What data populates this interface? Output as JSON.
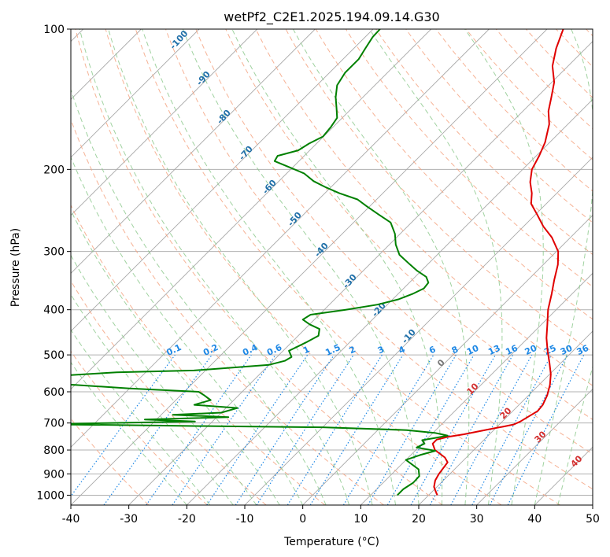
{
  "chart_data": {
    "type": "line",
    "title": "wetPf2_C2E1.2025.194.09.14.G30",
    "xlabel": "Temperature (°C)",
    "ylabel": "Pressure (hPa)",
    "xlim": [
      -40,
      50
    ],
    "ylim": [
      1050,
      100
    ],
    "y_scale": "log",
    "x_ticks": [
      -40,
      -30,
      -20,
      -10,
      0,
      10,
      20,
      30,
      40,
      50
    ],
    "y_ticks": [
      100,
      200,
      300,
      400,
      500,
      600,
      700,
      800,
      900,
      1000
    ],
    "grid": true,
    "series": [
      {
        "color": "#e00000",
        "points": [
          [
            21.5,
            1000
          ],
          [
            20.5,
            980
          ],
          [
            19.5,
            960
          ],
          [
            18.6,
            930
          ],
          [
            18.1,
            900
          ],
          [
            17.6,
            850
          ],
          [
            16.3,
            830
          ],
          [
            13.3,
            800
          ],
          [
            11.8,
            775
          ],
          [
            11.8,
            760
          ],
          [
            13.2,
            750
          ],
          [
            15.6,
            740
          ],
          [
            17.5,
            730
          ],
          [
            19.5,
            720
          ],
          [
            21.2,
            712
          ],
          [
            22.5,
            705
          ],
          [
            23.1,
            695
          ],
          [
            23.6,
            680
          ],
          [
            24.3,
            660
          ],
          [
            24.1,
            640
          ],
          [
            23.2,
            610
          ],
          [
            21.9,
            580
          ],
          [
            20.2,
            550
          ],
          [
            18.0,
            520
          ],
          [
            15.6,
            490
          ],
          [
            13.2,
            460
          ],
          [
            11.0,
            430
          ],
          [
            8.6,
            400
          ],
          [
            6.5,
            370
          ],
          [
            4.5,
            345
          ],
          [
            2.5,
            320
          ],
          [
            0.3,
            300
          ],
          [
            -3.2,
            280
          ],
          [
            -6.6,
            265
          ],
          [
            -9.7,
            250
          ],
          [
            -12.6,
            237
          ],
          [
            -14.3,
            225
          ],
          [
            -16.5,
            213
          ],
          [
            -18.4,
            200
          ],
          [
            -19.5,
            187
          ],
          [
            -20.8,
            175
          ],
          [
            -23.2,
            160
          ],
          [
            -25.6,
            150
          ],
          [
            -27.5,
            140
          ],
          [
            -29.6,
            130
          ],
          [
            -32.7,
            120
          ],
          [
            -35.1,
            110
          ],
          [
            -37.2,
            100
          ]
        ]
      },
      {
        "color": "#008000",
        "points": [
          [
            14.6,
            1000
          ],
          [
            14.6,
            970
          ],
          [
            15.2,
            940
          ],
          [
            15.1,
            910
          ],
          [
            13.8,
            880
          ],
          [
            10.0,
            840
          ],
          [
            11.6,
            820
          ],
          [
            13.5,
            803
          ],
          [
            9.7,
            790
          ],
          [
            10.4,
            775
          ],
          [
            9.4,
            762
          ],
          [
            11.6,
            752
          ],
          [
            13.0,
            745
          ],
          [
            11.7,
            740
          ],
          [
            10.3,
            735
          ],
          [
            5.0,
            725
          ],
          [
            -10.0,
            715
          ],
          [
            -35.0,
            710
          ],
          [
            -46.0,
            707
          ],
          [
            -60.0,
            705
          ],
          [
            -48.0,
            700
          ],
          [
            -33.0,
            695
          ],
          [
            -42.0,
            688
          ],
          [
            -28.0,
            680
          ],
          [
            -38.0,
            672
          ],
          [
            -30.0,
            665
          ],
          [
            -28.0,
            650
          ],
          [
            -36.0,
            640
          ],
          [
            -34.0,
            625
          ],
          [
            -36.0,
            610
          ],
          [
            -37.5,
            600
          ],
          [
            -50.0,
            590
          ],
          [
            -60.0,
            580
          ],
          [
            -75.0,
            565
          ],
          [
            -55.0,
            545
          ],
          [
            -42.0,
            540
          ],
          [
            -30.0,
            525
          ],
          [
            -28.0,
            515
          ],
          [
            -27.5,
            505
          ],
          [
            -29.0,
            490
          ],
          [
            -27.5,
            470
          ],
          [
            -26.5,
            455
          ],
          [
            -27.5,
            440
          ],
          [
            -30.0,
            430
          ],
          [
            -32.0,
            420
          ],
          [
            -31.5,
            410
          ],
          [
            -26.3,
            400
          ],
          [
            -21.7,
            390
          ],
          [
            -19.0,
            380
          ],
          [
            -17.5,
            370
          ],
          [
            -16.5,
            360
          ],
          [
            -16.7,
            350
          ],
          [
            -18.1,
            340
          ],
          [
            -20.7,
            330
          ],
          [
            -23.0,
            320
          ],
          [
            -26.5,
            305
          ],
          [
            -28.9,
            290
          ],
          [
            -30.9,
            275
          ],
          [
            -33.6,
            260
          ],
          [
            -37.0,
            250
          ],
          [
            -40.5,
            240
          ],
          [
            -43.3,
            232
          ],
          [
            -47.5,
            225
          ],
          [
            -51.1,
            218
          ],
          [
            -54.0,
            212
          ],
          [
            -57.0,
            204
          ],
          [
            -60.5,
            198
          ],
          [
            -64.2,
            192
          ],
          [
            -64.6,
            187
          ],
          [
            -62.0,
            182
          ],
          [
            -61.3,
            176
          ],
          [
            -60.1,
            170
          ],
          [
            -60.4,
            162
          ],
          [
            -60.9,
            155
          ],
          [
            -62.6,
            148
          ],
          [
            -64.7,
            140
          ],
          [
            -66.5,
            132
          ],
          [
            -67.3,
            124
          ],
          [
            -67.3,
            116
          ],
          [
            -68.0,
            110
          ],
          [
            -68.7,
            104
          ],
          [
            -68.8,
            100
          ]
        ]
      }
    ],
    "dry_adiabat_labels": [
      "-100",
      "-90",
      "-80",
      "-70",
      "-60",
      "-50",
      "-40",
      "-30",
      "-20",
      "-10"
    ],
    "moist_adiabat_labels": [
      "0",
      "10",
      "20",
      "30",
      "40"
    ],
    "mixing_ratio_labels": [
      "0.1",
      "0.2",
      "0.4",
      "0.6",
      "1",
      "1.5",
      "2",
      "3",
      "4",
      "6",
      "8",
      "10",
      "13",
      "16",
      "20",
      "25",
      "30",
      "36"
    ],
    "colors": {
      "temperature": "#e00000",
      "dewpoint": "#008000",
      "dry_adiabat": "#f4a582",
      "moist_adiabat": "#8fca8f",
      "mixing_ratio": "#1e88e5",
      "isotherm": "#888888"
    }
  }
}
